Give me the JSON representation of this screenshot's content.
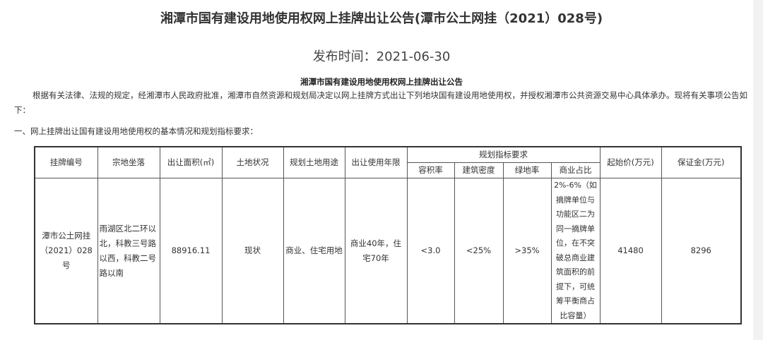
{
  "title": "湘潭市国有建设用地使用权网上挂牌出让公告(潭市公土网挂（2021）028号)",
  "publish_time": "发布时间：2021-06-30",
  "subtitle": "湘潭市国有建设用地使用权网上挂牌出让公告",
  "intro": "根据有关法律、法规的规定，经湘潭市人民政府批准，湘潭市自然资源和规划局决定以网上挂牌方式出让下列地块国有建设用地使用权，并授权湘潭市公共资源交易中心具体承办。现将有关事项公告如下：",
  "section_heading": "一、网上挂牌出让国有建设用地使用权的基本情况和规划指标要求：",
  "table": {
    "headers": {
      "listing_no": "挂牌编号",
      "location": "宗地坐落",
      "area": "出让面积(㎡)",
      "land_status": "土地状况",
      "planned_use": "规划土地用途",
      "term": "出让使用年限",
      "planning_group": "规划指标要求",
      "far": "容积率",
      "density": "建筑密度",
      "green": "绿地率",
      "commercial": "商业占比",
      "start_price": "起始价(万元)",
      "deposit": "保证金(万元)"
    },
    "rows": [
      {
        "listing_no": "潭市公土网挂（2021）028号",
        "location": "雨湖区北二环以北，科教三号路以西，科教二号路以南",
        "area": "88916.11",
        "land_status": "现状",
        "planned_use": "商业、住宅用地",
        "term": "商业40年，住宅70年",
        "far": "<3.0",
        "density": "<25%",
        "green": ">35%",
        "commercial": "2%-6%（如摘牌单位与功能区二为同一摘牌单位，在不突破总商业建筑面积的前提下，可统筹平衡商占比容量）",
        "start_price": "41480",
        "deposit": "8296"
      }
    ]
  }
}
